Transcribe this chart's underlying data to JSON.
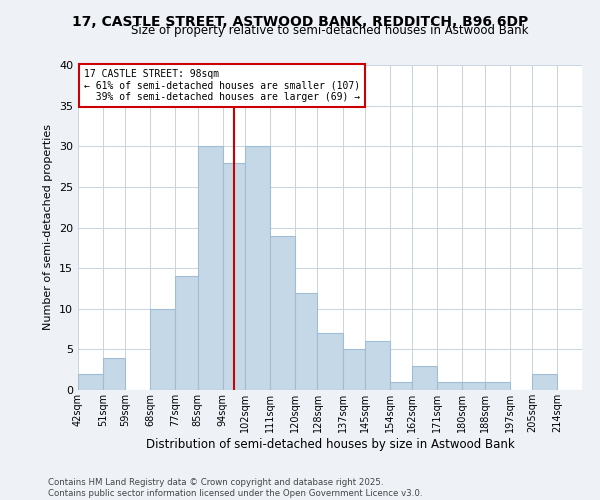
{
  "title": "17, CASTLE STREET, ASTWOOD BANK, REDDITCH, B96 6DP",
  "subtitle": "Size of property relative to semi-detached houses in Astwood Bank",
  "xlabel": "Distribution of semi-detached houses by size in Astwood Bank",
  "ylabel": "Number of semi-detached properties",
  "footnote": "Contains HM Land Registry data © Crown copyright and database right 2025.\nContains public sector information licensed under the Open Government Licence v3.0.",
  "bin_labels": [
    "42sqm",
    "51sqm",
    "59sqm",
    "68sqm",
    "77sqm",
    "85sqm",
    "94sqm",
    "102sqm",
    "111sqm",
    "120sqm",
    "128sqm",
    "137sqm",
    "145sqm",
    "154sqm",
    "162sqm",
    "171sqm",
    "180sqm",
    "188sqm",
    "197sqm",
    "205sqm",
    "214sqm"
  ],
  "bar_values": [
    2,
    4,
    0,
    10,
    14,
    30,
    28,
    30,
    19,
    12,
    7,
    5,
    6,
    1,
    3,
    1,
    1,
    1,
    0,
    2,
    0
  ],
  "bar_color": "#c5d8e8",
  "bar_edgecolor": "#a0bdd4",
  "property_label": "17 CASTLE STREET: 98sqm",
  "smaller_pct": 61,
  "smaller_count": 107,
  "larger_pct": 39,
  "larger_count": 69,
  "vline_color": "#cc0000",
  "annotation_box_color": "#cc0000",
  "ylim": [
    0,
    40
  ],
  "yticks": [
    0,
    5,
    10,
    15,
    20,
    25,
    30,
    35,
    40
  ],
  "bin_edges": [
    42,
    51,
    59,
    68,
    77,
    85,
    94,
    102,
    111,
    120,
    128,
    137,
    145,
    154,
    162,
    171,
    180,
    188,
    197,
    205,
    214,
    223
  ],
  "vline_x": 98,
  "bg_color": "#eef2f7",
  "plot_bg_color": "#ffffff"
}
